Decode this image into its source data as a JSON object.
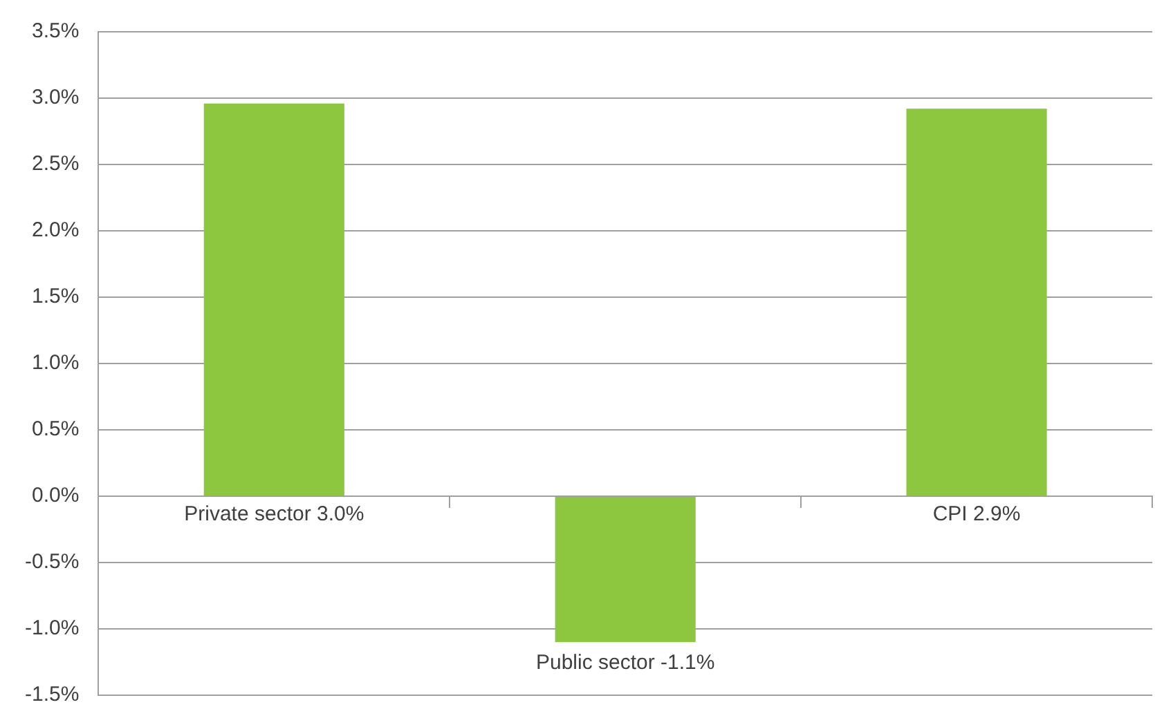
{
  "chart_data": {
    "type": "bar",
    "categories": [
      "Private sector 3.0%",
      "Public sector -1.1%",
      "CPI 2.9%"
    ],
    "values": [
      2.96,
      -1.1,
      2.92
    ],
    "color": "#8dc63f",
    "ylim": [
      -1.5,
      3.5
    ],
    "yticks": [
      {
        "value": -1.5,
        "label": "-1.5%"
      },
      {
        "value": -1.0,
        "label": "-1.0%"
      },
      {
        "value": -0.5,
        "label": "-0.5%"
      },
      {
        "value": 0,
        "label": "0.0%"
      },
      {
        "value": 0.5,
        "label": "0.5%"
      },
      {
        "value": 1.0,
        "label": "1.0%"
      },
      {
        "value": 1.5,
        "label": "1.5%"
      },
      {
        "value": 2.0,
        "label": "2.0%"
      },
      {
        "value": 2.5,
        "label": "2.5%"
      },
      {
        "value": 3.0,
        "label": "3.0%"
      },
      {
        "value": 3.5,
        "label": "3.5%"
      }
    ],
    "grid": "y"
  }
}
